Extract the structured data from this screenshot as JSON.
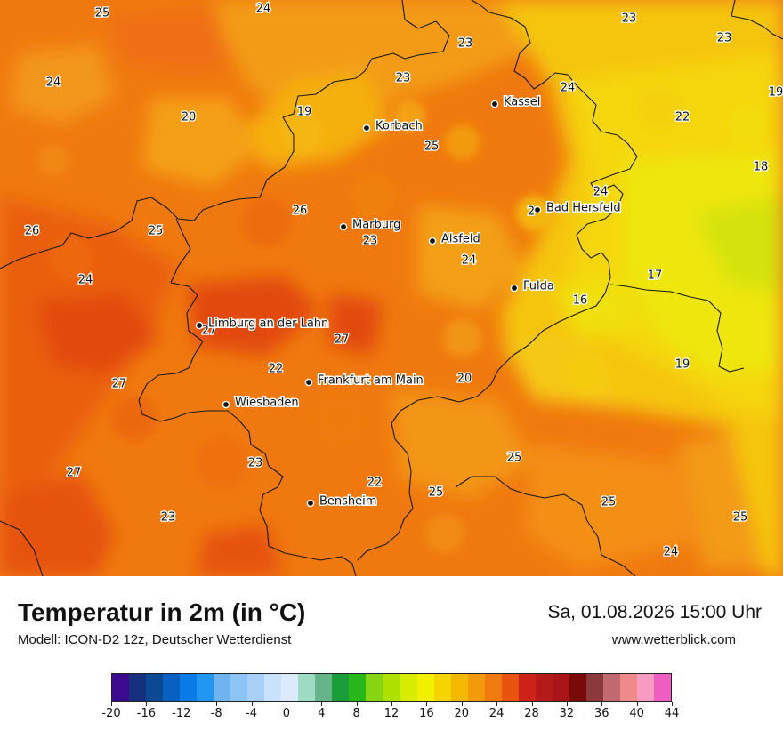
{
  "map": {
    "cities": [
      {
        "name": "Kassel"
      },
      {
        "name": "Korbach"
      },
      {
        "name": "Bad Hersfeld"
      },
      {
        "name": "Marburg"
      },
      {
        "name": "Alsfeld"
      },
      {
        "name": "Fulda"
      },
      {
        "name": "Limburg an der Lahn"
      },
      {
        "name": "Frankfurt am Main"
      },
      {
        "name": "Wiesbaden"
      },
      {
        "name": "Bensheim"
      }
    ],
    "temperature_labels": [
      "25",
      "24",
      "23",
      "23",
      "23",
      "24",
      "23",
      "19",
      "24",
      "20",
      "19",
      "22",
      "18",
      "25",
      "24",
      "26",
      "26",
      "25",
      "23",
      "24",
      "24",
      "17",
      "16",
      "27",
      "27",
      "22",
      "20",
      "19",
      "27",
      "23",
      "25",
      "22",
      "25",
      "25",
      "27",
      "23",
      "25",
      "24",
      "2"
    ]
  },
  "footer": {
    "title": "Temperatur in 2m (in °C)",
    "model": "Modell: ICON-D2 12z, Deutscher Wetterdienst",
    "datetime": "Sa, 01.08.2026 15:00 Uhr",
    "website": "www.wetterblick.com"
  },
  "legend": {
    "ticks": [
      "-20",
      "-16",
      "-12",
      "-8",
      "-4",
      "0",
      "4",
      "8",
      "12",
      "16",
      "20",
      "24",
      "28",
      "32",
      "36",
      "40",
      "44"
    ],
    "colors": [
      "#3b0a8f",
      "#17307d",
      "#0b4a93",
      "#0861c0",
      "#0a7be6",
      "#2296f3",
      "#6fb2f0",
      "#8cc4f6",
      "#a8d0f6",
      "#c9e1fb",
      "#dceafd",
      "#9ddbc2",
      "#66b48a",
      "#1c9d3c",
      "#27b71a",
      "#86d412",
      "#aee000",
      "#d8ec00",
      "#f0f000",
      "#f5d400",
      "#f5b800",
      "#f29a0a",
      "#ef7a10",
      "#e85410",
      "#cc2218",
      "#b51a1a",
      "#a81418",
      "#7a0a0a",
      "#8a3a3a",
      "#c26870",
      "#f08a8a",
      "#f59cc0",
      "#ee5ec0"
    ]
  }
}
